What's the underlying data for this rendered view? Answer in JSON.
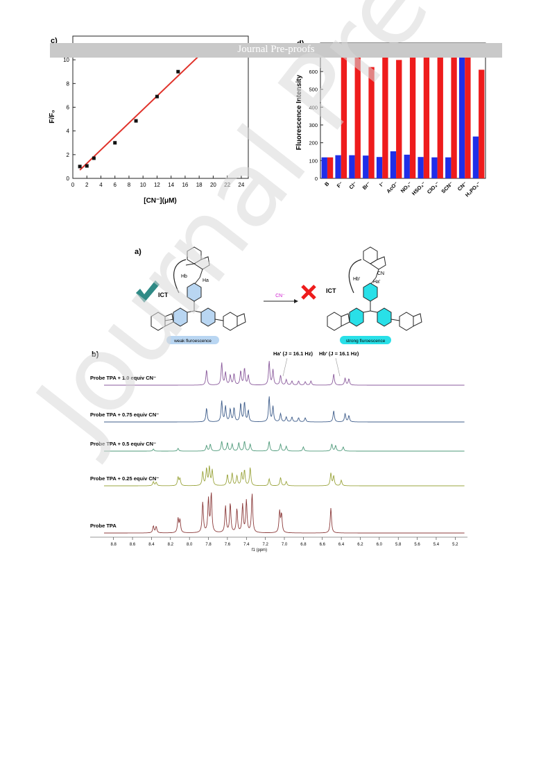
{
  "banner": {
    "text": "Journal Pre-proofs"
  },
  "watermark": {
    "text": "Journal Pre-proofs"
  },
  "panel_c": {
    "label": "c)"
  },
  "panel_d": {
    "label": "d)"
  },
  "scheme": {
    "label": "a)",
    "left_caption": "weak fluroescence",
    "right_caption": "strong fluroescence",
    "arrow_label": "CN⁻",
    "ict_left": "ICT",
    "ict_right": "ICT",
    "hb": "Hb",
    "ha": "Ha",
    "hb_prime": "Hb'",
    "ha_prime": "Ha'",
    "cn_group": "CN"
  },
  "nmr": {
    "label": "b)",
    "annotation_ha": "Ha' (J = 16.1 Hz)",
    "annotation_hb": "Hb' (J = 16.1 Hz)",
    "traces": [
      {
        "label": "Probe TPA + 1.0 equiv CN⁻",
        "color": "#8a5a9c"
      },
      {
        "label": "Probe TPA + 0.75 equiv CN⁻",
        "color": "#3d5c8a"
      },
      {
        "label": "Probe TPA + 0.5 equiv CN⁻",
        "color": "#4e9a7a"
      },
      {
        "label": "Probe TPA + 0.25 equiv CN⁻",
        "color": "#9aa43c"
      },
      {
        "label": "Probe TPA",
        "color": "#8b3a3a"
      }
    ],
    "axis_label": "f1 (ppm)",
    "ticks": [
      "8.8",
      "8.6",
      "8.4",
      "8.2",
      "8.0",
      "7.8",
      "7.6",
      "7.4",
      "7.2",
      "7.0",
      "6.8",
      "6.6",
      "6.4",
      "6.2",
      "6.0",
      "5.8",
      "5.6",
      "5.4",
      "5.2"
    ]
  },
  "chart_data": [
    {
      "type": "scatter",
      "title": "",
      "xlabel": "[CN⁻](μM)",
      "ylabel": "F/F₀",
      "xlim": [
        0,
        25
      ],
      "ylim": [
        0,
        12
      ],
      "xticks": [
        "0",
        "2",
        "4",
        "6",
        "8",
        "10",
        "12",
        "14",
        "16",
        "18",
        "20",
        "22",
        "24"
      ],
      "yticks": [
        "0",
        "2",
        "4",
        "6",
        "8",
        "10"
      ],
      "x": [
        1,
        2,
        3,
        6,
        9,
        12,
        15,
        18
      ],
      "y": [
        1.0,
        1.05,
        1.7,
        3.0,
        4.85,
        6.9,
        9.0,
        10.5
      ],
      "fit_line": {
        "color": "#e0322a",
        "x": [
          1,
          19.5
        ],
        "y": [
          0.7,
          11.2
        ]
      },
      "grid": false
    },
    {
      "type": "bar",
      "title": "",
      "xlabel": "",
      "ylabel": "Fluorescence Intensity",
      "ylim": [
        0,
        760
      ],
      "yticks": [
        "0",
        "100",
        "200",
        "300",
        "400",
        "500",
        "600",
        "700"
      ],
      "categories": [
        "B",
        "F⁻",
        "Cl⁻",
        "Br⁻",
        "I⁻",
        "AcO⁻",
        "NO₃⁻",
        "HSO₄⁻",
        "ClO₄⁻",
        "SCN⁻",
        "CN⁻",
        "H₂PO₄⁻"
      ],
      "series": [
        {
          "color": "#1f2ee8",
          "values": [
            118,
            130,
            130,
            128,
            120,
            152,
            133,
            120,
            118,
            118,
            717,
            235
          ]
        },
        {
          "color": "#ee1c1c",
          "values": [
            118,
            708,
            738,
            625,
            732,
            665,
            738,
            718,
            718,
            735,
            718,
            610
          ]
        }
      ],
      "grid": false
    }
  ]
}
